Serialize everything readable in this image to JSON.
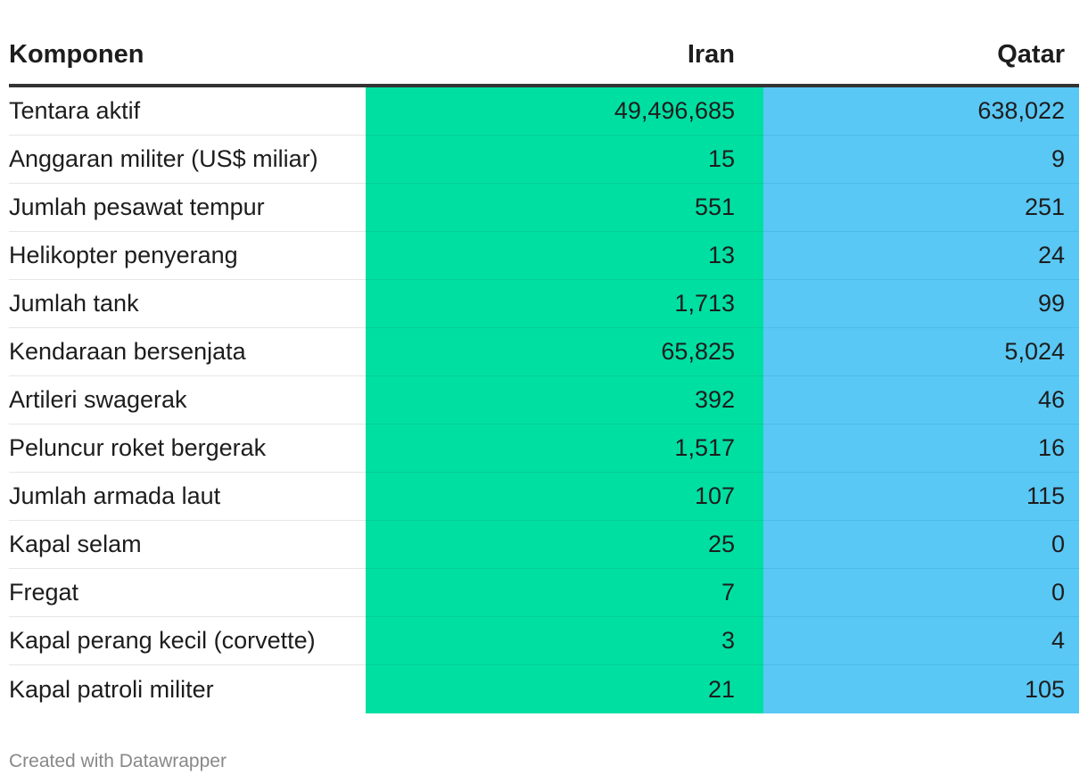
{
  "chart_data": {
    "type": "table",
    "columns": [
      "Komponen",
      "Iran",
      "Qatar"
    ],
    "rows": [
      {
        "label": "Tentara aktif",
        "values": [
          "49,496,685",
          "638,022"
        ]
      },
      {
        "label": "Anggaran militer (US$ miliar)",
        "values": [
          "15",
          "9"
        ]
      },
      {
        "label": "Jumlah pesawat tempur",
        "values": [
          "551",
          "251"
        ]
      },
      {
        "label": "Helikopter penyerang",
        "values": [
          "13",
          "24"
        ]
      },
      {
        "label": "Jumlah tank",
        "values": [
          "1,713",
          "99"
        ]
      },
      {
        "label": "Kendaraan bersenjata",
        "values": [
          "65,825",
          "5,024"
        ]
      },
      {
        "label": "Artileri swagerak",
        "values": [
          "392",
          "46"
        ]
      },
      {
        "label": "Peluncur roket bergerak",
        "values": [
          "1,517",
          "16"
        ]
      },
      {
        "label": "Jumlah armada laut",
        "values": [
          "107",
          "115"
        ]
      },
      {
        "label": "Kapal selam",
        "values": [
          "25",
          "0"
        ]
      },
      {
        "label": "Fregat",
        "values": [
          "7",
          "0"
        ]
      },
      {
        "label": "Kapal perang kecil (corvette)",
        "values": [
          "3",
          "4"
        ]
      },
      {
        "label": "Kapal patroli militer",
        "values": [
          "21",
          "105"
        ]
      }
    ],
    "column_colors": {
      "Iran": "#00dfa2",
      "Qatar": "#5ac8f5"
    }
  },
  "footer": {
    "credit": "Created with Datawrapper"
  }
}
